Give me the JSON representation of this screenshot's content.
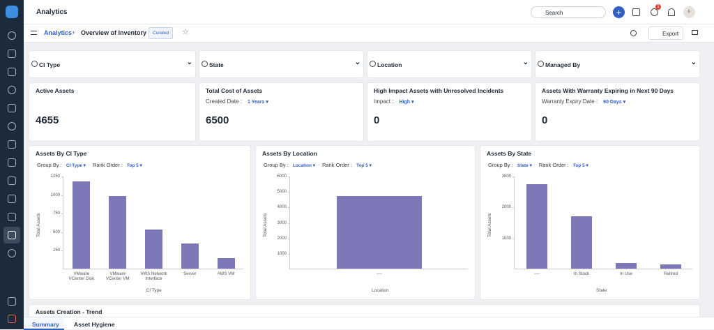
{
  "header": {
    "title": "Analytics",
    "search": "Search",
    "badge": "1",
    "avatar": "F"
  },
  "breadcrumb": {
    "root": "Analytics",
    "page": "Overview of Inventory",
    "tag": "Curated",
    "export": "Export"
  },
  "filters": [
    "CI Type",
    "State",
    "Location",
    "Managed By"
  ],
  "kpis": [
    {
      "title": "Active Assets",
      "value": "4655"
    },
    {
      "title": "Total Cost of Assets",
      "filter_label": "Created Date :",
      "filter_value": "1 Years",
      "value": "6500"
    },
    {
      "title": "High Impact Assets with Unresolved Incidents",
      "filter_label": "Impact :",
      "filter_value": "High",
      "value": "0"
    },
    {
      "title": "Assets With Warranty Expiring in Next 90 Days",
      "filter_label": "Warranty Expiry Date :",
      "filter_value": "90 Days",
      "value": "0"
    }
  ],
  "chart_data": [
    {
      "type": "bar",
      "title": "Assets By CI Type",
      "group_by_label": "Group By :",
      "group_by_value": "CI Type",
      "rank_order_label": "Rank Order :",
      "rank_order_value": "Top 5",
      "categories": [
        "VMware VCenter Disk",
        "VMware VCenter VM",
        "AWS Network Interface",
        "Server",
        "AWS VM"
      ],
      "values": [
        1175,
        977,
        526,
        338,
        141
      ],
      "color": "#7c78b8",
      "xlabel": "CI Type",
      "ylabel": "Total Assets",
      "ylim": [
        0,
        1250
      ],
      "yticks": [
        250,
        500,
        750,
        1000,
        1250
      ]
    },
    {
      "type": "bar",
      "title": "Assets By Location",
      "group_by_label": "Group By :",
      "group_by_value": "Location",
      "rank_order_label": "Rank Order :",
      "rank_order_value": "Top 5",
      "categories": [
        "----"
      ],
      "values": [
        4700
      ],
      "color": "#7c78b8",
      "xlabel": "Location",
      "ylabel": "Total Assets",
      "ylim": [
        0,
        6000
      ],
      "yticks": [
        1000,
        2000,
        3000,
        4000,
        5000,
        6000
      ]
    },
    {
      "type": "bar",
      "title": "Assets By State",
      "group_by_label": "Group By :",
      "group_by_value": "State",
      "rank_order_label": "Rank Order :",
      "rank_order_value": "Top 5",
      "categories": [
        "----",
        "In Stock",
        "In Use",
        "Retired"
      ],
      "values": [
        2740,
        1700,
        170,
        130
      ],
      "color": "#7c78b8",
      "xlabel": "State",
      "ylabel": "Total Assets",
      "ylim": [
        0,
        3000
      ],
      "yticks": [
        1000,
        2000,
        3000
      ]
    }
  ],
  "trend_title": "Assets Creation - Trend",
  "tabs": [
    "Summary",
    "Asset Hygiene"
  ]
}
